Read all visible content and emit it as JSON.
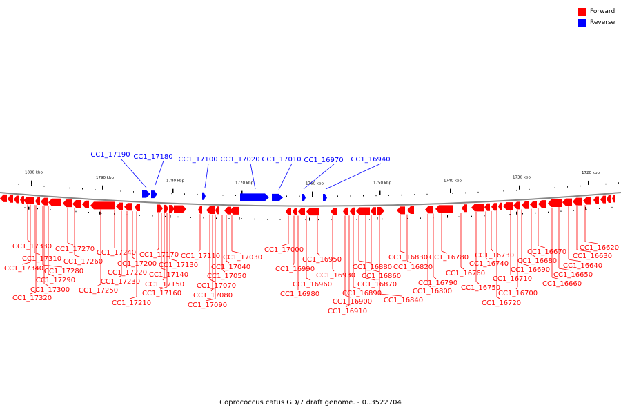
{
  "legend": [
    {
      "label": "Forward",
      "color": "#ff0000"
    },
    {
      "label": "Reverse",
      "color": "#0000ff"
    }
  ],
  "footer": "Coprococcus catus GD/7 draft genome. - 0..3522704",
  "colors": {
    "forward": "#ff0000",
    "reverse": "#0000ff",
    "backbone": "#888888"
  },
  "scale_labels": [
    "1800 kbp",
    "1790 kbp",
    "1780 kbp",
    "1770 kbp",
    "1760 kbp",
    "1750 kbp",
    "1740 kbp",
    "1730 kbp",
    "1720 kbp"
  ],
  "reverse_genes": [
    "CC1_17190",
    "CC1_17180",
    "CC1_17100",
    "CC1_17020",
    "CC1_17010",
    "CC1_16970",
    "CC1_16940"
  ],
  "forward_genes": [
    "CC1_17330",
    "CC1_17310",
    "CC1_17340",
    "CC1_17280",
    "CC1_17290",
    "CC1_17300",
    "CC1_17320",
    "CC1_17270",
    "CC1_17260",
    "CC1_17250",
    "CC1_17240",
    "CC1_17230",
    "CC1_17220",
    "CC1_17210",
    "CC1_17200",
    "CC1_17170",
    "CC1_17140",
    "CC1_17150",
    "CC1_17160",
    "CC1_17130",
    "CC1_17110",
    "CC1_17070",
    "CC1_17080",
    "CC1_17090",
    "CC1_17050",
    "CC1_17040",
    "CC1_17030",
    "CC1_17000",
    "CC1_16990",
    "CC1_16980",
    "CC1_16960",
    "CC1_16950",
    "CC1_16930",
    "CC1_16900",
    "CC1_16910",
    "CC1_16890",
    "CC1_16880",
    "CC1_16870",
    "CC1_16860",
    "CC1_16840",
    "CC1_16830",
    "CC1_16820",
    "CC1_16800",
    "CC1_16790",
    "CC1_16780",
    "CC1_16760",
    "CC1_16750",
    "CC1_16740",
    "CC1_16730",
    "CC1_16720",
    "CC1_16710",
    "CC1_16700",
    "CC1_16690",
    "CC1_16680",
    "CC1_16670",
    "CC1_16660",
    "CC1_16650",
    "CC1_16640",
    "CC1_16630",
    "CC1_16620"
  ]
}
